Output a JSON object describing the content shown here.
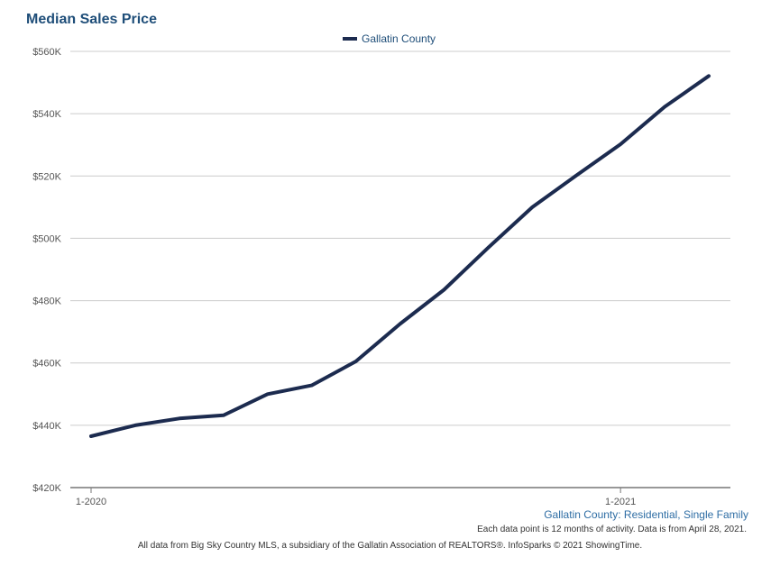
{
  "chart_data": {
    "type": "line",
    "title": "Median Sales Price",
    "legend": "top-center",
    "grid": true,
    "ylim": [
      420000,
      560000
    ],
    "yticks": [
      420000,
      440000,
      460000,
      480000,
      500000,
      520000,
      540000,
      560000
    ],
    "ytick_labels": [
      "$420K",
      "$440K",
      "$460K",
      "$480K",
      "$500K",
      "$520K",
      "$540K",
      "$560K"
    ],
    "x": [
      "1-2020",
      "2-2020",
      "3-2020",
      "4-2020",
      "5-2020",
      "6-2020",
      "7-2020",
      "8-2020",
      "9-2020",
      "10-2020",
      "11-2020",
      "12-2020",
      "1-2021",
      "2-2021",
      "3-2021"
    ],
    "xtick_labels": [
      "1-2020",
      "1-2021"
    ],
    "series": [
      {
        "name": "Gallatin County",
        "color": "#1c2b4f",
        "values": [
          436500,
          440000,
          442200,
          443200,
          450000,
          452800,
          460500,
          472500,
          483500,
          497000,
          510000,
          520200,
          530200,
          542200,
          552100
        ]
      }
    ]
  },
  "subtitle": "Gallatin County: Residential, Single Family",
  "note": "Each data point is 12 months of activity. Data is from April 28, 2021.",
  "footer": "All data from Big Sky Country MLS, a subsidiary of the Gallatin Association of REALTORS®. InfoSparks © 2021 ShowingTime."
}
